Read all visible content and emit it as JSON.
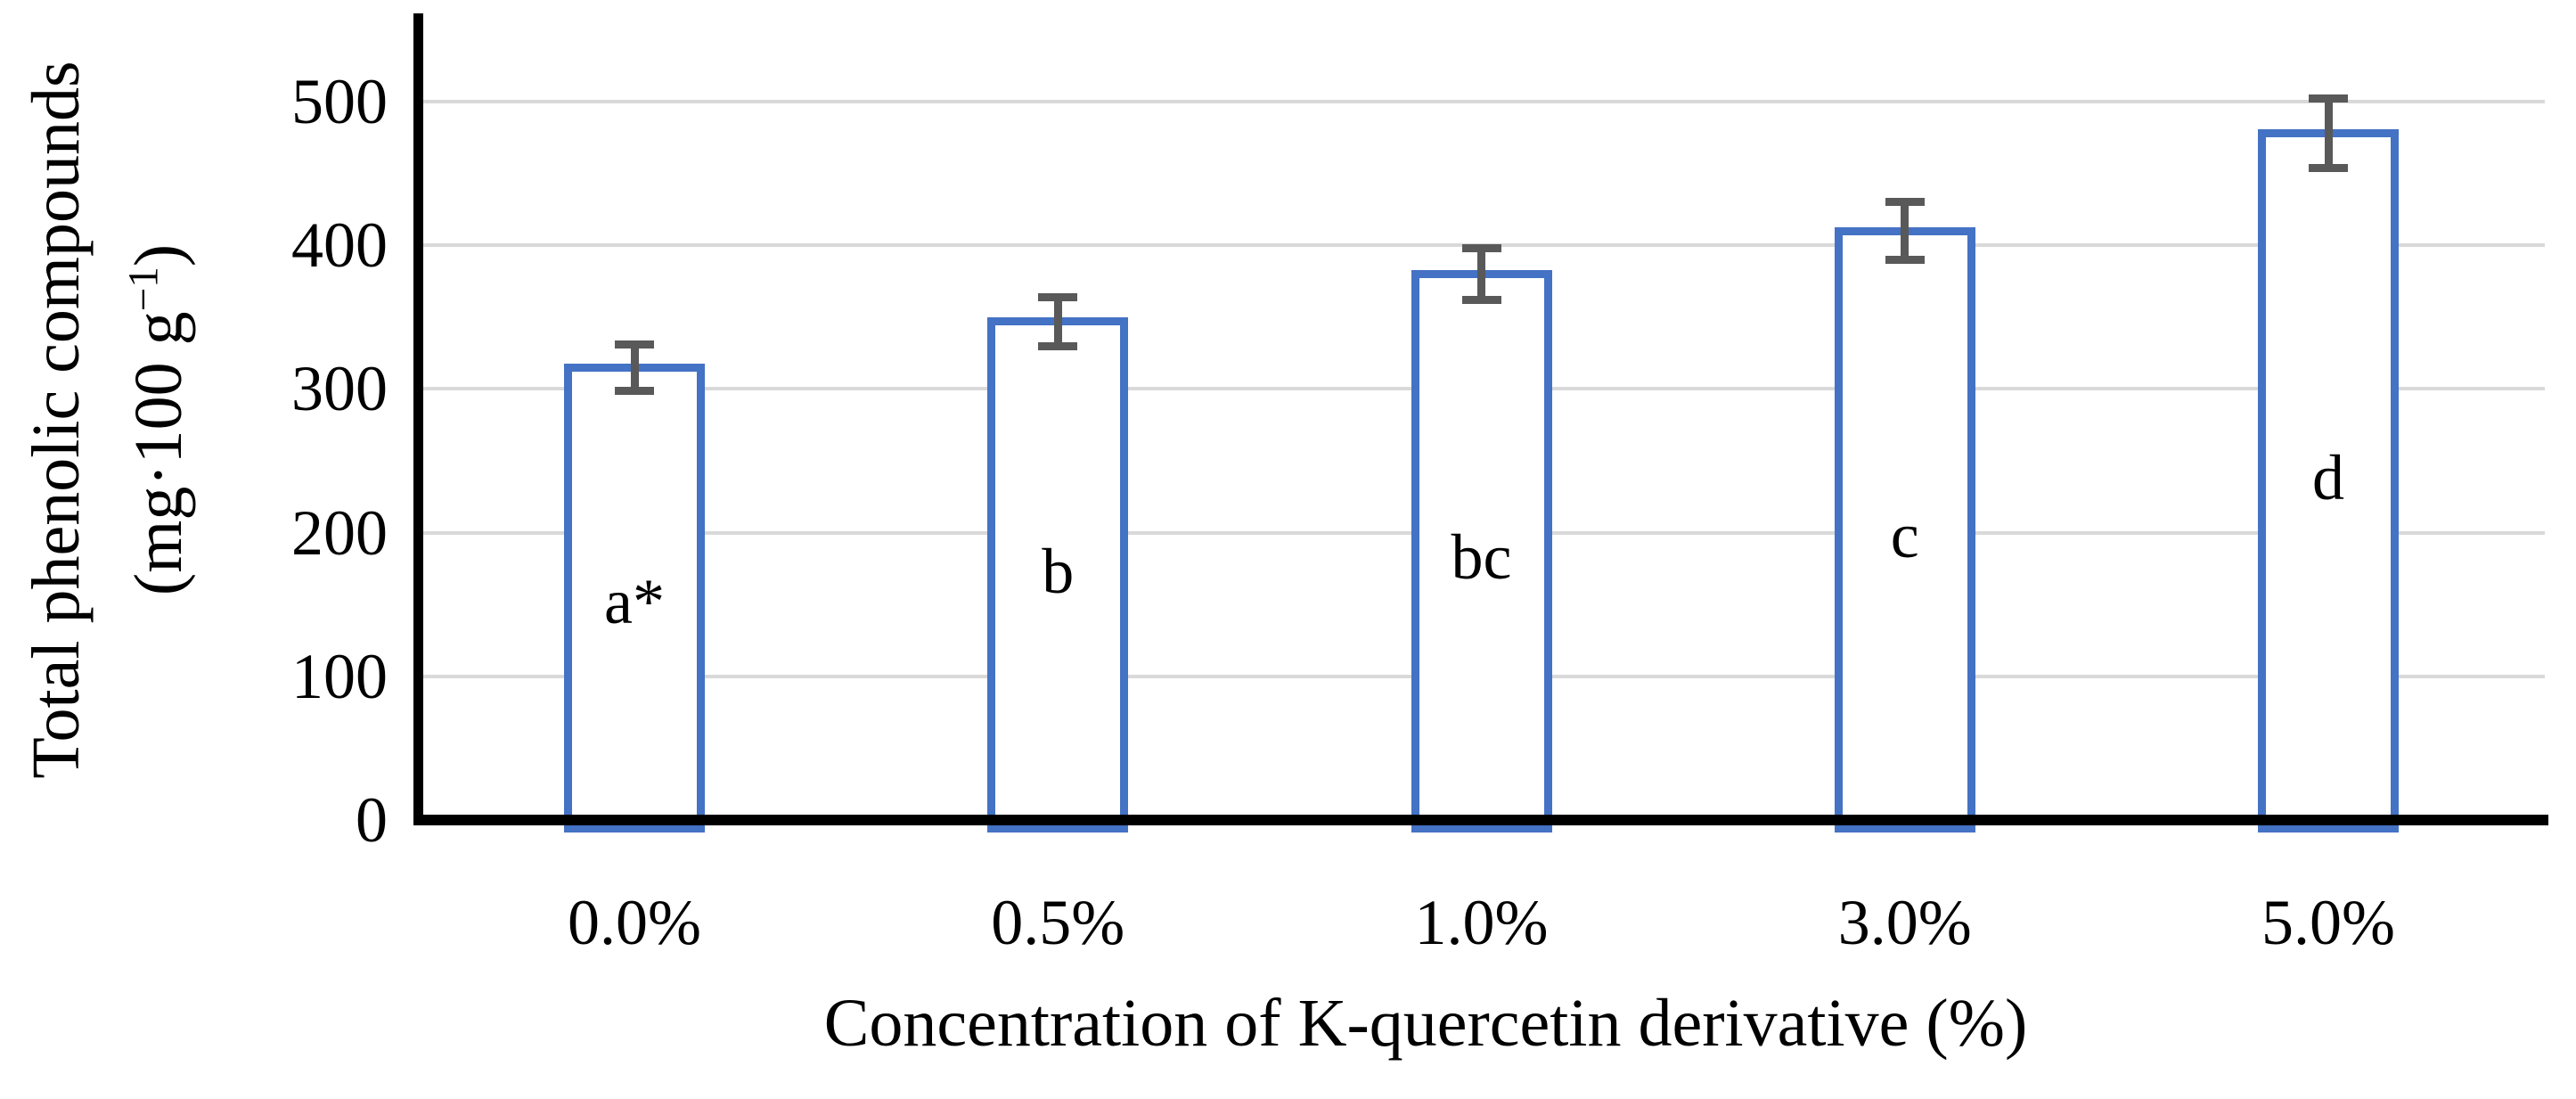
{
  "chart_data": {
    "type": "bar",
    "title": "",
    "xlabel": "Concentration of K-quercetin derivative (%)",
    "ylabel_line1": "Total phenolic compounds",
    "ylabel_unit_prefix": "(mg·100 g",
    "ylabel_unit_superscript": "−1",
    "ylabel_unit_suffix": ")",
    "categories": [
      "0.0%",
      "0.5%",
      "1.0%",
      "3.0%",
      "5.0%"
    ],
    "values": [
      315,
      347,
      380,
      410,
      478
    ],
    "errors": [
      16,
      17,
      18,
      20,
      24
    ],
    "bar_labels": [
      "a*",
      "b",
      "bc",
      "c",
      "d"
    ],
    "bar_label_values": [
      152,
      173,
      183,
      198,
      238
    ],
    "y_ticks": [
      0,
      100,
      200,
      300,
      400,
      500
    ],
    "ylim": [
      0,
      561
    ],
    "grid": true,
    "legend": false,
    "colors": {
      "bar_border": "#4472C4",
      "bar_fill": "#FFFFFF",
      "error_bar": "#595959",
      "gridline": "#D9D9D9",
      "axis": "#000000",
      "text": "#000000"
    }
  }
}
